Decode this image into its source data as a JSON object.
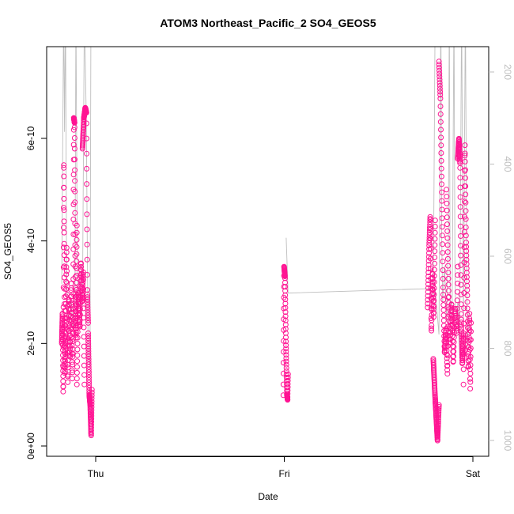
{
  "chart_data": {
    "type": "scatter",
    "title": "ATOM3 Northeast_Pacific_2 SO4_GEOS5",
    "xlabel": "Date",
    "ylabel": "SO4_GEOS5",
    "x_ticks": [
      "Thu",
      "Fri",
      "Sat"
    ],
    "xlim": [
      -0.13,
      2.07
    ],
    "ylim": [
      0,
      7.8e-10
    ],
    "y_ticks": [
      "0e+00",
      "2e-10",
      "4e-10",
      "6e-10"
    ],
    "y_tick_values": [
      0,
      2e-10,
      4e-10,
      6e-10
    ],
    "y2_ticks": [
      "200",
      "400",
      "600",
      "800",
      "1000"
    ],
    "y2_tick_values": [
      200,
      400,
      600,
      800,
      1000
    ],
    "y2_lim": [
      1010,
      60
    ],
    "y2_axis": "pressure (reversed), grey line overlay",
    "colors": {
      "points": "#ff1493",
      "pressure_line": "#bebebe",
      "axis": "#000000",
      "y2_text": "#bebebe"
    },
    "series": [
      {
        "marker": "open-circle",
        "segments": [
          {
            "x0": -0.18,
            "x1": -0.16,
            "keys": [
              [
                0,
                2e-10
              ],
              [
                0.2,
                2.6e-10
              ],
              [
                0.4,
                1e-10
              ],
              [
                0.55,
                5.6e-10
              ],
              [
                0.7,
                3e-10
              ],
              [
                0.85,
                1.4e-10
              ],
              [
                1,
                2.2e-10
              ]
            ]
          },
          {
            "x0": -0.16,
            "x1": -0.12,
            "keys": [
              [
                0,
                2.2e-10
              ],
              [
                0.15,
                3.9e-10
              ],
              [
                0.3,
                1.2e-10
              ],
              [
                0.45,
                2.9e-10
              ],
              [
                0.6,
                1.7e-10
              ],
              [
                0.75,
                3.2e-10
              ],
              [
                0.9,
                1.3e-10
              ],
              [
                1,
                2.5e-10
              ]
            ]
          },
          {
            "x0": -0.12,
            "x1": -0.1,
            "keys": [
              [
                0,
                1.8e-10
              ],
              [
                0.2,
                6.4e-10
              ],
              [
                0.4,
                6.3e-10
              ],
              [
                0.6,
                3e-10
              ],
              [
                0.8,
                2.1e-10
              ],
              [
                1,
                4.3e-10
              ]
            ]
          },
          {
            "x0": -0.1,
            "x1": -0.06,
            "keys": [
              [
                0,
                1.2e-10
              ],
              [
                0.2,
                3e-10
              ],
              [
                0.4,
                2.3e-10
              ],
              [
                0.55,
                3.6e-10
              ],
              [
                0.7,
                2.8e-10
              ],
              [
                0.85,
                3.4e-10
              ],
              [
                1,
                1.2e-10
              ]
            ]
          },
          {
            "x0": -0.07,
            "x1": -0.04,
            "keys": [
              [
                0,
                5.8e-10
              ],
              [
                0.25,
                6.4e-10
              ],
              [
                0.5,
                6.6e-10
              ],
              [
                0.7,
                6.5e-10
              ],
              [
                0.85,
                3e-10
              ],
              [
                1,
                2.4e-10
              ]
            ]
          },
          {
            "x0": -0.04,
            "x1": -0.02,
            "keys": [
              [
                0,
                2.2e-10
              ],
              [
                0.3,
                1e-10
              ],
              [
                0.55,
                8e-11
              ],
              [
                0.8,
                2e-11
              ],
              [
                1,
                1.1e-10
              ]
            ]
          },
          {
            "x0": 0.995,
            "x1": 1.02,
            "keys": [
              [
                0,
                9.9e-11
              ],
              [
                0.15,
                3.5e-10
              ],
              [
                0.35,
                3.3e-10
              ],
              [
                0.55,
                2e-10
              ],
              [
                0.75,
                1e-10
              ],
              [
                0.9,
                9e-11
              ],
              [
                1,
                1.4e-10
              ]
            ]
          },
          {
            "x0": 1.76,
            "x1": 1.8,
            "keys": [
              [
                0,
                2.7e-10
              ],
              [
                0.2,
                3.9e-10
              ],
              [
                0.35,
                4.5e-10
              ],
              [
                0.5,
                2.2e-10
              ],
              [
                0.65,
                3.4e-10
              ],
              [
                0.8,
                2.5e-10
              ],
              [
                1,
                4.4e-10
              ]
            ]
          },
          {
            "x0": 1.79,
            "x1": 1.82,
            "keys": [
              [
                0,
                1.7e-10
              ],
              [
                0.3,
                1e-10
              ],
              [
                0.55,
                5e-11
              ],
              [
                0.75,
                1e-11
              ],
              [
                1,
                8e-11
              ]
            ]
          },
          {
            "x0": 1.82,
            "x1": 1.87,
            "keys": [
              [
                0,
                7.5e-10
              ],
              [
                0.15,
                6.8e-10
              ],
              [
                0.3,
                5e-10
              ],
              [
                0.45,
                3e-10
              ],
              [
                0.6,
                1.8e-10
              ],
              [
                0.75,
                2.3e-10
              ],
              [
                0.9,
                1.4e-10
              ],
              [
                1,
                2.9e-10
              ]
            ]
          },
          {
            "x0": 1.86,
            "x1": 1.92,
            "keys": [
              [
                0,
                5e-10
              ],
              [
                0.15,
                3.4e-10
              ],
              [
                0.3,
                2e-10
              ],
              [
                0.45,
                2.8e-10
              ],
              [
                0.6,
                1.6e-10
              ],
              [
                0.75,
                2.7e-10
              ],
              [
                0.9,
                2.2e-10
              ],
              [
                1,
                3.5e-10
              ]
            ]
          },
          {
            "x0": 1.92,
            "x1": 1.95,
            "keys": [
              [
                0,
                5.6e-10
              ],
              [
                0.2,
                6e-10
              ],
              [
                0.4,
                5.5e-10
              ],
              [
                0.6,
                2.5e-10
              ],
              [
                0.8,
                1.6e-10
              ],
              [
                1,
                2.2e-10
              ]
            ]
          },
          {
            "x0": 1.95,
            "x1": 1.99,
            "keys": [
              [
                0,
                1.2e-10
              ],
              [
                0.2,
                5.9e-10
              ],
              [
                0.35,
                4e-10
              ],
              [
                0.5,
                3e-10
              ],
              [
                0.65,
                1.5e-10
              ],
              [
                0.8,
                2.6e-10
              ],
              [
                0.9,
                1.1e-10
              ],
              [
                1,
                2.4e-10
              ]
            ]
          }
        ]
      }
    ],
    "pressure_line": {
      "segments": [
        [
          [
            -0.18,
            660
          ],
          [
            -0.17,
            60
          ],
          [
            -0.165,
            330
          ],
          [
            -0.16,
            60
          ],
          [
            -0.155,
            560
          ],
          [
            -0.15,
            720
          ],
          [
            -0.14,
            740
          ],
          [
            -0.13,
            690
          ],
          [
            -0.12,
            760
          ],
          [
            -0.11,
            700
          ],
          [
            -0.105,
            60
          ],
          [
            -0.1,
            450
          ],
          [
            -0.095,
            720
          ],
          [
            -0.085,
            690
          ],
          [
            -0.075,
            740
          ],
          [
            -0.07,
            700
          ],
          [
            -0.06,
            60
          ],
          [
            -0.05,
            300
          ],
          [
            -0.04,
            820
          ],
          [
            -0.03,
            840
          ],
          [
            -0.025,
            60
          ]
        ],
        [
          [
            1.01,
            560
          ],
          [
            1.015,
            620
          ],
          [
            1.02,
            680
          ],
          [
            1.8,
            670
          ],
          [
            1.81,
            720
          ],
          [
            1.82,
            770
          ],
          [
            1.83,
            60
          ],
          [
            1.835,
            560
          ],
          [
            1.84,
            700
          ],
          [
            1.85,
            620
          ],
          [
            1.86,
            740
          ],
          [
            1.87,
            560
          ],
          [
            1.875,
            60
          ],
          [
            1.88,
            780
          ],
          [
            1.89,
            720
          ],
          [
            1.9,
            60
          ],
          [
            1.905,
            620
          ],
          [
            1.91,
            760
          ],
          [
            1.92,
            700
          ],
          [
            1.93,
            820
          ],
          [
            1.94,
            60
          ],
          [
            1.95,
            740
          ],
          [
            1.96,
            60
          ],
          [
            1.97,
            800
          ],
          [
            1.98,
            720
          ]
        ],
        [
          [
            1.79,
            700
          ],
          [
            1.8,
            60
          ],
          [
            1.5,
            60
          ],
          [
            1.2,
            60
          ],
          [
            0.95,
            60
          ]
        ]
      ]
    }
  }
}
